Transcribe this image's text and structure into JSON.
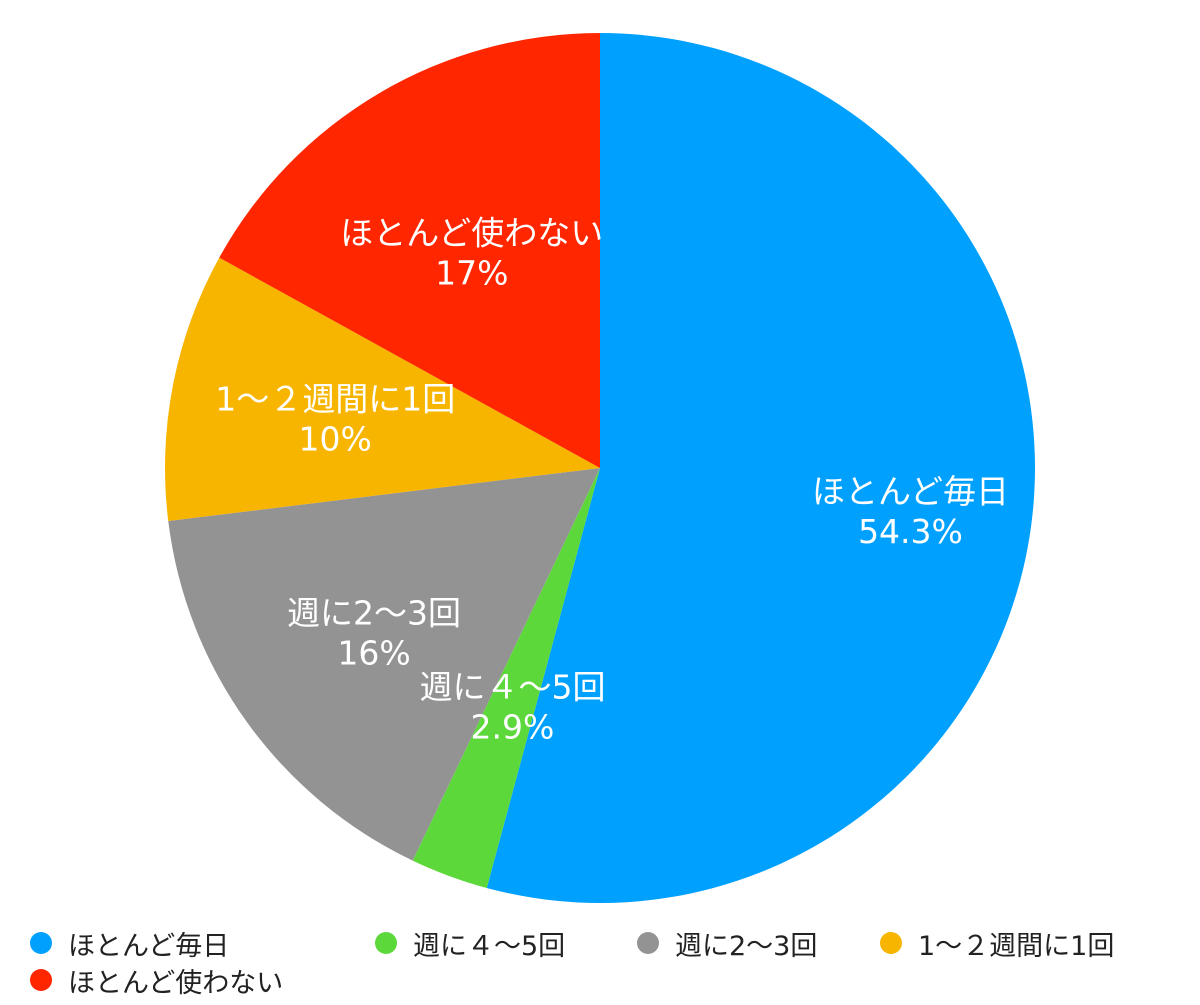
{
  "chart_data": {
    "type": "pie",
    "title": "",
    "start_angle_deg": 0,
    "direction": "clockwise",
    "slices": [
      {
        "label": "ほとんど毎日",
        "value": 54.3,
        "value_text": "54.3%",
        "color": "#00a0ff"
      },
      {
        "label": "週に４〜5回",
        "value": 2.9,
        "value_text": "2.9%",
        "color": "#5dd83b"
      },
      {
        "label": "週に2〜3回",
        "value": 16,
        "value_text": "16%",
        "color": "#939393"
      },
      {
        "label": "1〜２週間に1回",
        "value": 10,
        "value_text": "10%",
        "color": "#f7b500"
      },
      {
        "label": "ほとんど使わない",
        "value": 17,
        "value_text": "17%",
        "color": "#ff2600"
      }
    ],
    "legend_position": "bottom-left"
  },
  "legend": {
    "items": [
      {
        "label": "ほとんど毎日",
        "color": "#00a0ff"
      },
      {
        "label": "週に４〜5回",
        "color": "#5dd83b"
      },
      {
        "label": "週に2〜3回",
        "color": "#939393"
      },
      {
        "label": "1〜２週間に1回",
        "color": "#f7b500"
      },
      {
        "label": "ほとんど使わない",
        "color": "#ff2600"
      }
    ]
  }
}
